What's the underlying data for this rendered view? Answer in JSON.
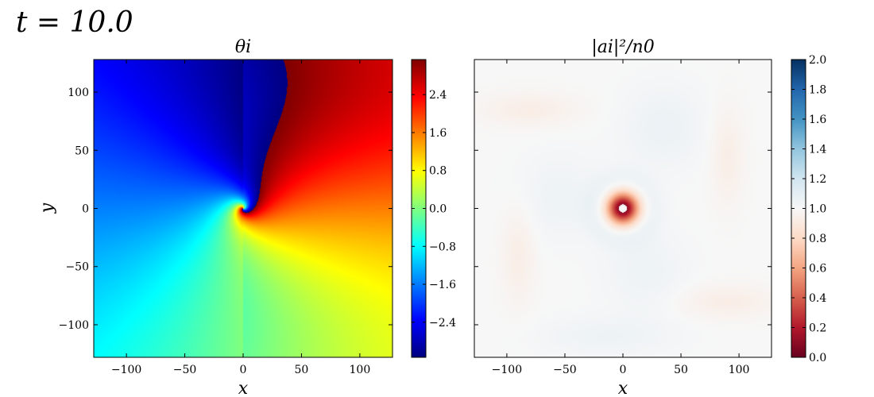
{
  "figure": {
    "title": "t = 10.0"
  },
  "chart_data": [
    {
      "type": "heatmap",
      "title": "θi",
      "xlabel": "x",
      "ylabel": "y",
      "xlim": [
        -128,
        128
      ],
      "ylim": [
        -128,
        128
      ],
      "xticks": [
        -100,
        -50,
        0,
        50,
        100
      ],
      "yticks": [
        100,
        50,
        0,
        -50,
        -100
      ],
      "colormap": "jet",
      "colorbar": {
        "range": [
          -3.14,
          3.14
        ],
        "ticks": [
          2.4,
          1.6,
          0.8,
          0.0,
          -0.8,
          -1.6,
          -2.4
        ],
        "tick_labels": [
          "2.4",
          "1.6",
          "0.8",
          "0.0",
          "−0.8",
          "−1.6",
          "−2.4"
        ]
      }
    },
    {
      "type": "heatmap",
      "title": "|ai|²/n0",
      "xlabel": "x",
      "ylabel": "",
      "xlim": [
        -128,
        128
      ],
      "ylim": [
        -128,
        128
      ],
      "xticks": [
        -100,
        -50,
        0,
        50,
        100
      ],
      "yticks": [
        100,
        50,
        0,
        -50,
        -100
      ],
      "colormap": "RdBu",
      "colorbar": {
        "range": [
          0.0,
          2.0
        ],
        "ticks": [
          2.0,
          1.8,
          1.6,
          1.4,
          1.2,
          1.0,
          0.8,
          0.6,
          0.4,
          0.2,
          0.0
        ],
        "tick_labels": [
          "2.0",
          "1.8",
          "1.6",
          "1.4",
          "1.2",
          "1.0",
          "0.8",
          "0.6",
          "0.4",
          "0.2",
          "0.0"
        ]
      }
    }
  ],
  "colors": {
    "jet": [
      "#00007f",
      "#0000ff",
      "#007fff",
      "#00ffff",
      "#7fff7f",
      "#ffff00",
      "#ff7f00",
      "#ff0000",
      "#7f0000"
    ],
    "rdbu": [
      "#67001f",
      "#b2182b",
      "#d6604d",
      "#f4a582",
      "#fddbc7",
      "#f7f7f7",
      "#d1e5f0",
      "#92c5de",
      "#4393c3",
      "#2166ac",
      "#053061"
    ]
  }
}
